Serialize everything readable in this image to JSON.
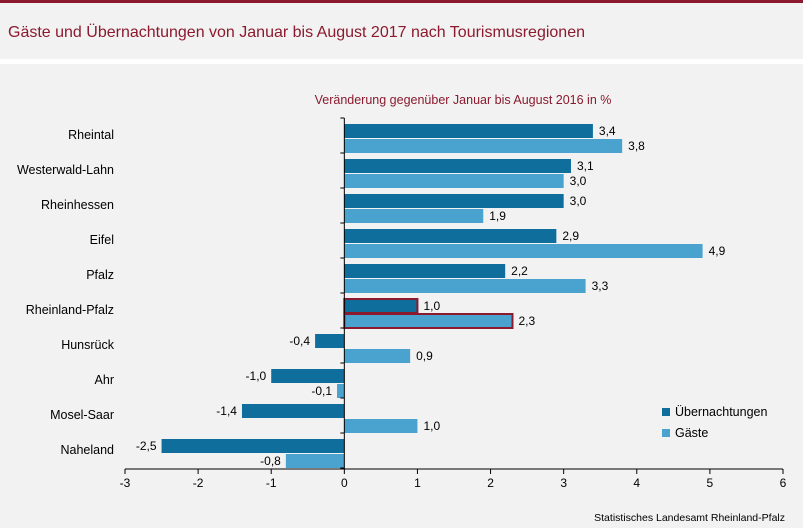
{
  "page": {
    "title": "Gäste und Übernachtungen von Januar bis August 2017 nach Tourismusregionen",
    "source": "Statistisches Landesamt Rheinland-Pfalz"
  },
  "colors": {
    "brand": "#8b1a2e",
    "uebernachtungen": "#0f6e9c",
    "gaeste": "#4aa3cf",
    "highlight_border": "#8b1a2e"
  },
  "chart_data": {
    "type": "bar",
    "orientation": "horizontal",
    "title": "Veränderung gegenüber Januar bis August 2016 in %",
    "categories": [
      "Rheintal",
      "Westerwald-Lahn",
      "Rheinhessen",
      "Eifel",
      "Pfalz",
      "Rheinland-Pfalz",
      "Hunsrück",
      "Ahr",
      "Mosel-Saar",
      "Naheland"
    ],
    "series": [
      {
        "name": "Übernachtungen",
        "values": [
          3.4,
          3.1,
          3.0,
          2.9,
          2.2,
          1.0,
          -0.4,
          -1.0,
          -1.4,
          -2.5
        ],
        "labels": [
          "3,4",
          "3,1",
          "3,0",
          "2,9",
          "2,2",
          "1,0",
          "-0,4",
          "-1,0",
          "-1,4",
          "-2,5"
        ]
      },
      {
        "name": "Gäste",
        "values": [
          3.8,
          3.0,
          1.9,
          4.9,
          3.3,
          2.3,
          0.9,
          -0.1,
          1.0,
          -0.8
        ],
        "labels": [
          "3,8",
          "3,0",
          "1,9",
          "4,9",
          "3,3",
          "2,3",
          "0,9",
          "-0,1",
          "1,0",
          "-0,8"
        ]
      }
    ],
    "highlight_category": "Rheinland-Pfalz",
    "xlim": [
      -3,
      6
    ],
    "xticks": [
      -3,
      -2,
      -1,
      0,
      1,
      2,
      3,
      4,
      5,
      6
    ],
    "xlabel": "",
    "ylabel": "",
    "grid": false,
    "legend_position": "bottom-right"
  }
}
